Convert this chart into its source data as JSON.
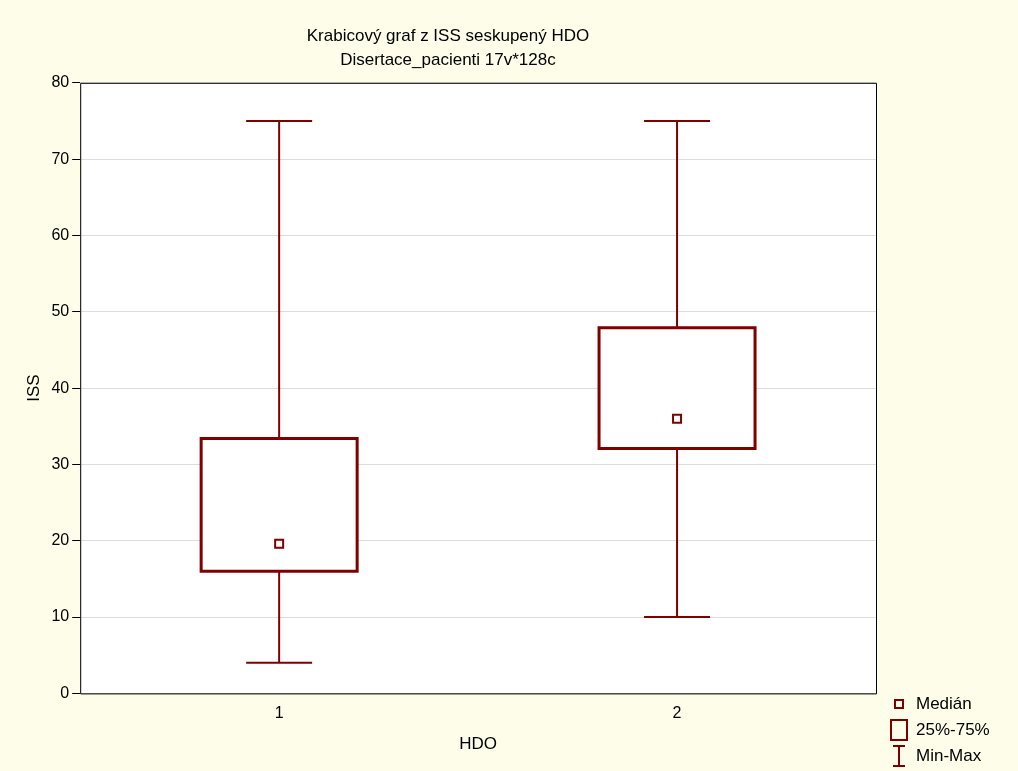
{
  "chart_data": {
    "type": "box",
    "title": "Krabicový graf z ISS seskupený HDO",
    "subtitle": "Disertace_pacienti 17v*128c",
    "xlabel": "HDO",
    "ylabel": "ISS",
    "categories": [
      "1",
      "2"
    ],
    "series": [
      {
        "color": "#800000",
        "boxes": [
          {
            "low": 4,
            "q1": 16,
            "median": 19.6,
            "q3": 33.4,
            "high": 75
          },
          {
            "low": 10,
            "q1": 32.1,
            "median": 36,
            "q3": 47.9,
            "high": 75
          }
        ]
      }
    ],
    "ylim": [
      0,
      80
    ],
    "yticks": [
      0,
      10,
      20,
      30,
      40,
      50,
      60,
      70,
      80
    ],
    "grid": "y",
    "annotations": [
      "Medián",
      "25%-75%",
      "Min-Max"
    ]
  }
}
